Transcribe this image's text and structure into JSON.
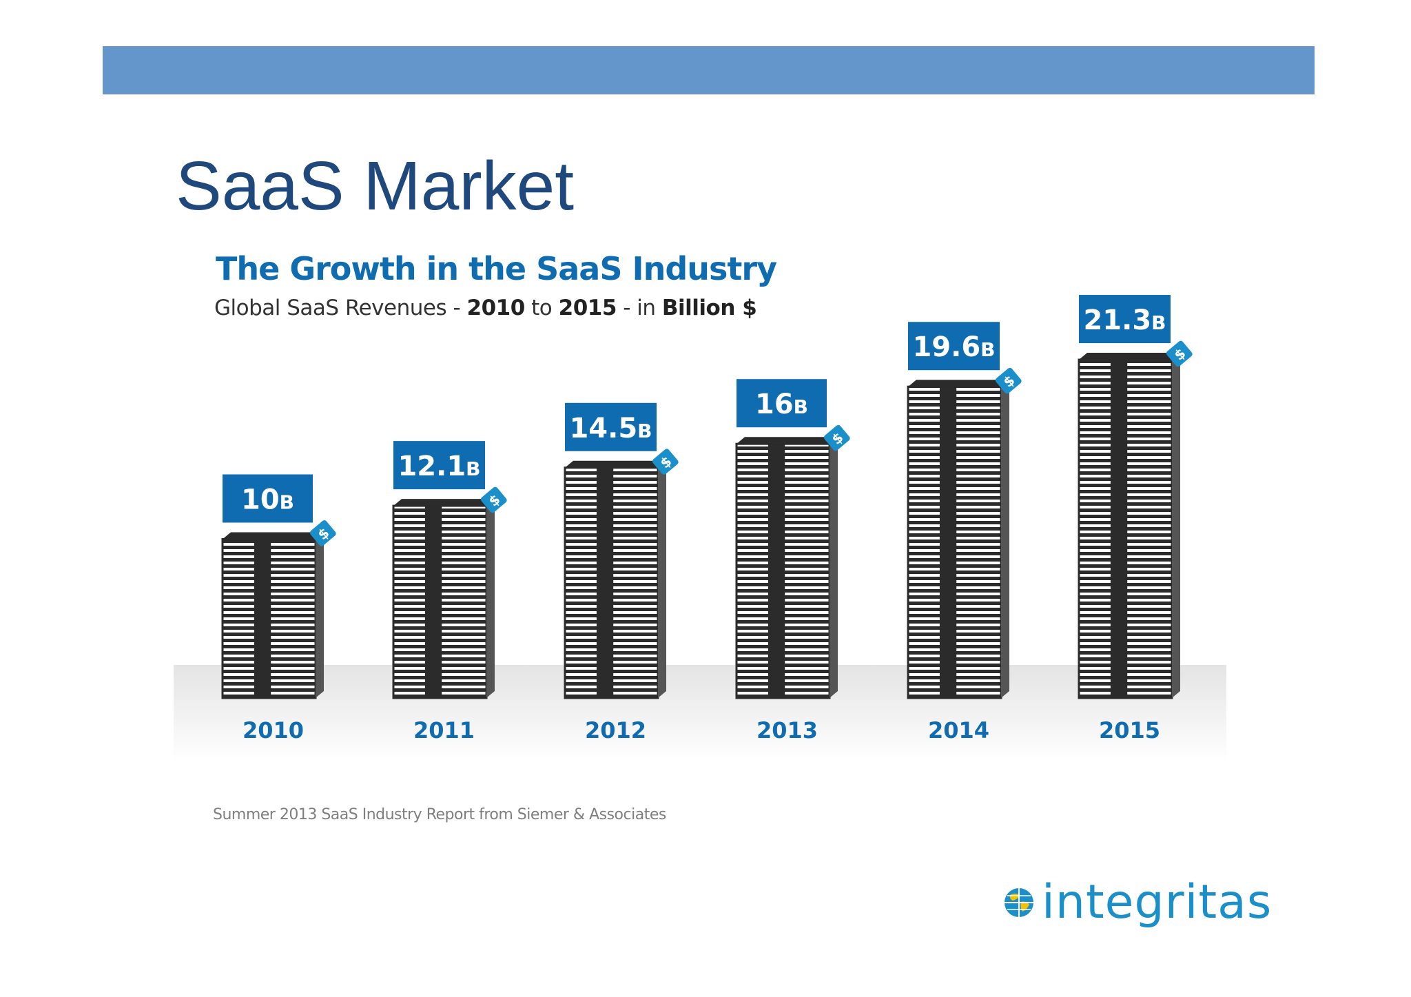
{
  "slide": {
    "title": "SaaS Market",
    "bar_color": "#6496cb"
  },
  "chart_data": {
    "type": "bar",
    "title": "The Growth in the SaaS Industry",
    "subtitle": {
      "prefix": "Global SaaS Revenues - ",
      "start_year": "2010",
      "middle": " to ",
      "end_year": "2015",
      "suffix": " - in ",
      "unit": "Billion $"
    },
    "categories": [
      "2010",
      "2011",
      "2012",
      "2013",
      "2014",
      "2015"
    ],
    "values": [
      10,
      12.1,
      14.5,
      16,
      19.6,
      21.3
    ],
    "data_labels": [
      "10",
      "12.1",
      "14.5",
      "16",
      "19.6",
      "21.3"
    ],
    "label_unit_suffix": "B",
    "tag_symbol": "$",
    "xlabel": "",
    "ylabel": "",
    "ylim": [
      0,
      25
    ],
    "grid": false,
    "legend": "none",
    "colors": {
      "stack": "#2b2b2b",
      "label_box": "#0f6cb0",
      "year_text": "#0f6cb0",
      "tag": "#1a8fc9"
    }
  },
  "source": "Summer 2013 SaaS Industry Report from Siemer & Associates",
  "logo": {
    "text": "integritas",
    "icon": "globe-icon",
    "color": "#1a8fc9"
  }
}
